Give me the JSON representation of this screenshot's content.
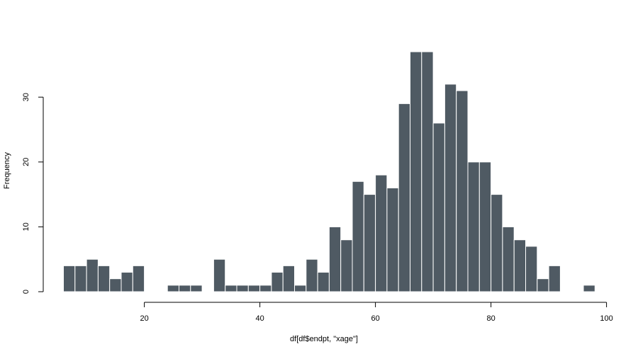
{
  "chart_data": {
    "type": "bar",
    "title": "",
    "xlabel": "df[df$endpt, \"xage\"]",
    "ylabel": "Frequency",
    "xlim": [
      6,
      98
    ],
    "ylim": [
      0,
      37
    ],
    "bin_width": 2,
    "x_ticks": [
      20,
      40,
      60,
      80,
      100
    ],
    "y_ticks": [
      0,
      10,
      20,
      30
    ],
    "bar_color": "#4f5a63",
    "grid": false,
    "legend": "none",
    "bins": [
      {
        "start": 6,
        "count": 4
      },
      {
        "start": 8,
        "count": 4
      },
      {
        "start": 10,
        "count": 5
      },
      {
        "start": 12,
        "count": 4
      },
      {
        "start": 14,
        "count": 2
      },
      {
        "start": 16,
        "count": 3
      },
      {
        "start": 18,
        "count": 4
      },
      {
        "start": 20,
        "count": 0
      },
      {
        "start": 22,
        "count": 0
      },
      {
        "start": 24,
        "count": 1
      },
      {
        "start": 26,
        "count": 1
      },
      {
        "start": 28,
        "count": 1
      },
      {
        "start": 30,
        "count": 0
      },
      {
        "start": 32,
        "count": 5
      },
      {
        "start": 34,
        "count": 1
      },
      {
        "start": 36,
        "count": 1
      },
      {
        "start": 38,
        "count": 1
      },
      {
        "start": 40,
        "count": 1
      },
      {
        "start": 42,
        "count": 3
      },
      {
        "start": 44,
        "count": 4
      },
      {
        "start": 46,
        "count": 1
      },
      {
        "start": 48,
        "count": 5
      },
      {
        "start": 50,
        "count": 3
      },
      {
        "start": 52,
        "count": 10
      },
      {
        "start": 54,
        "count": 8
      },
      {
        "start": 56,
        "count": 17
      },
      {
        "start": 58,
        "count": 15
      },
      {
        "start": 60,
        "count": 18
      },
      {
        "start": 62,
        "count": 16
      },
      {
        "start": 64,
        "count": 29
      },
      {
        "start": 66,
        "count": 37
      },
      {
        "start": 68,
        "count": 37
      },
      {
        "start": 70,
        "count": 26
      },
      {
        "start": 72,
        "count": 32
      },
      {
        "start": 74,
        "count": 31
      },
      {
        "start": 76,
        "count": 20
      },
      {
        "start": 78,
        "count": 20
      },
      {
        "start": 80,
        "count": 15
      },
      {
        "start": 82,
        "count": 10
      },
      {
        "start": 84,
        "count": 8
      },
      {
        "start": 86,
        "count": 7
      },
      {
        "start": 88,
        "count": 2
      },
      {
        "start": 90,
        "count": 4
      },
      {
        "start": 92,
        "count": 0
      },
      {
        "start": 94,
        "count": 0
      },
      {
        "start": 96,
        "count": 1
      }
    ]
  }
}
